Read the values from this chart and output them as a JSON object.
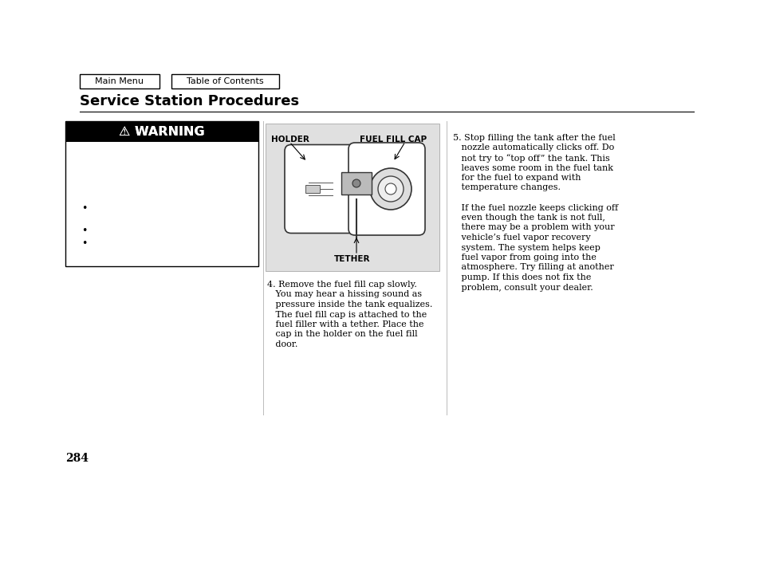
{
  "bg_color": "#ffffff",
  "page_width": 9.54,
  "page_height": 7.1,
  "nav_btn1_label": "Main Menu",
  "nav_btn2_label": "Table of Contents",
  "section_title": "Service Station Procedures",
  "page_number": "284",
  "warning_title": "⚠ WARNING",
  "diagram_label_holder": "HOLDER",
  "diagram_label_fuel": "FUEL FILL CAP",
  "diagram_label_tether": "TETHER",
  "diagram_bg": "#e0e0e0",
  "step4_lines": [
    "4. Remove the fuel fill cap slowly.",
    "   You may hear a hissing sound as",
    "   pressure inside the tank equalizes.",
    "   The fuel fill cap is attached to the",
    "   fuel filler with a tether. Place the",
    "   cap in the holder on the fuel fill",
    "   door."
  ],
  "step5_lines": [
    "5. Stop filling the tank after the fuel",
    "   nozzle automatically clicks off. Do",
    "   not try to “top off” the tank. This",
    "   leaves some room in the fuel tank",
    "   for the fuel to expand with",
    "   temperature changes.",
    "",
    "   If the fuel nozzle keeps clicking off",
    "   even though the tank is not full,",
    "   there may be a problem with your",
    "   vehicle’s fuel vapor recovery",
    "   system. The system helps keep",
    "   fuel vapor from going into the",
    "   atmosphere. Try filling at another",
    "   pump. If this does not fix the",
    "   problem, consult your dealer."
  ]
}
